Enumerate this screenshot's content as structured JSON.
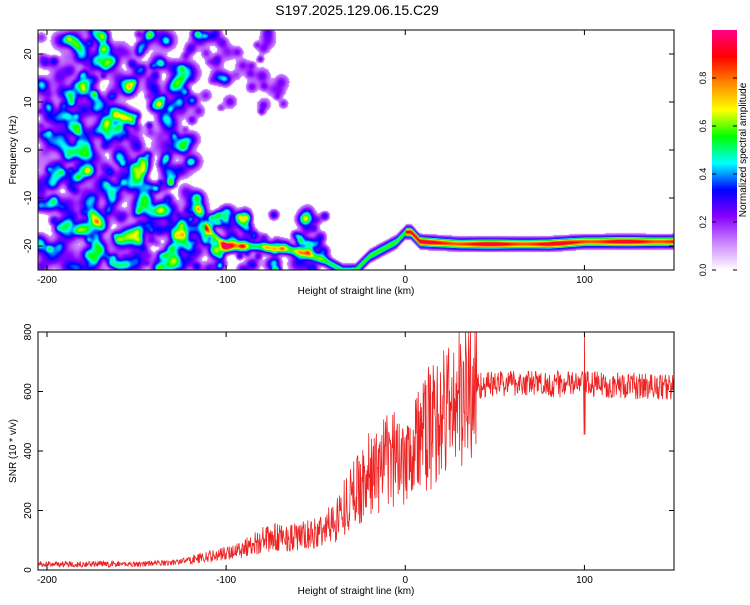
{
  "title": "S197.2025.129.06.15.C29",
  "chart_data": [
    {
      "type": "heatmap",
      "xlabel": "Height of straight line (km)",
      "ylabel": "Frequency (Hz)",
      "xlim": [
        -205,
        150
      ],
      "ylim": [
        -25,
        25
      ],
      "x_ticks": [
        -200,
        -100,
        0,
        100
      ],
      "y_ticks": [
        -20,
        -10,
        0,
        10,
        20
      ],
      "colorbar": {
        "label": "Normalized spectral amplitude",
        "range": [
          0,
          1
        ],
        "ticks": [
          0.0,
          0.2,
          0.4,
          0.6,
          0.8
        ],
        "tick_labels": [
          "0.0",
          "0.2",
          "0.4",
          "0.6",
          "0.8"
        ],
        "colors": [
          "#ffffff",
          "#cc88ff",
          "#8800ff",
          "#0000ff",
          "#00ffff",
          "#00ff00",
          "#ffff00",
          "#ff8800",
          "#ff0000",
          "#ff0088"
        ]
      },
      "noise_region": {
        "x_range": [
          -205,
          -115
        ],
        "y_range": [
          -25,
          25
        ],
        "level": 0.15
      },
      "ridge_path": [
        {
          "x": -112,
          "y": -16
        },
        {
          "x": -100,
          "y": -20
        },
        {
          "x": -80,
          "y": -20
        },
        {
          "x": -60,
          "y": -21
        },
        {
          "x": -45,
          "y": -23
        },
        {
          "x": -35,
          "y": -25
        },
        {
          "x": -28,
          "y": -25
        },
        {
          "x": -20,
          "y": -22
        },
        {
          "x": -10,
          "y": -20
        },
        {
          "x": -5,
          "y": -19
        },
        {
          "x": 0,
          "y": -17
        },
        {
          "x": 3,
          "y": -17
        },
        {
          "x": 8,
          "y": -19
        },
        {
          "x": 30,
          "y": -19.5
        },
        {
          "x": 60,
          "y": -19.5
        },
        {
          "x": 80,
          "y": -19.5
        },
        {
          "x": 100,
          "y": -19
        },
        {
          "x": 150,
          "y": -19
        }
      ]
    },
    {
      "type": "line",
      "xlabel": "Height of straight line (km)",
      "ylabel": "SNR (10 * v/v)",
      "xlim": [
        -205,
        150
      ],
      "ylim": [
        0,
        800
      ],
      "x_ticks": [
        -200,
        -100,
        0,
        100
      ],
      "y_ticks": [
        0,
        200,
        400,
        600,
        800
      ],
      "line_color": "#ee2222",
      "trend": [
        {
          "x": -205,
          "y": 20
        },
        {
          "x": -150,
          "y": 20
        },
        {
          "x": -130,
          "y": 25
        },
        {
          "x": -120,
          "y": 35
        },
        {
          "x": -100,
          "y": 55
        },
        {
          "x": -90,
          "y": 75
        },
        {
          "x": -80,
          "y": 100
        },
        {
          "x": -70,
          "y": 110
        },
        {
          "x": -60,
          "y": 110
        },
        {
          "x": -50,
          "y": 120
        },
        {
          "x": -40,
          "y": 160
        },
        {
          "x": -30,
          "y": 250
        },
        {
          "x": -20,
          "y": 320
        },
        {
          "x": -10,
          "y": 360
        },
        {
          "x": 0,
          "y": 400
        },
        {
          "x": 10,
          "y": 450
        },
        {
          "x": 20,
          "y": 520
        },
        {
          "x": 30,
          "y": 580
        },
        {
          "x": 40,
          "y": 620
        },
        {
          "x": 60,
          "y": 630
        },
        {
          "x": 80,
          "y": 625
        },
        {
          "x": 100,
          "y": 625
        },
        {
          "x": 120,
          "y": 620
        },
        {
          "x": 150,
          "y": 615
        }
      ],
      "spike": {
        "x": 100,
        "y": 790
      }
    }
  ]
}
